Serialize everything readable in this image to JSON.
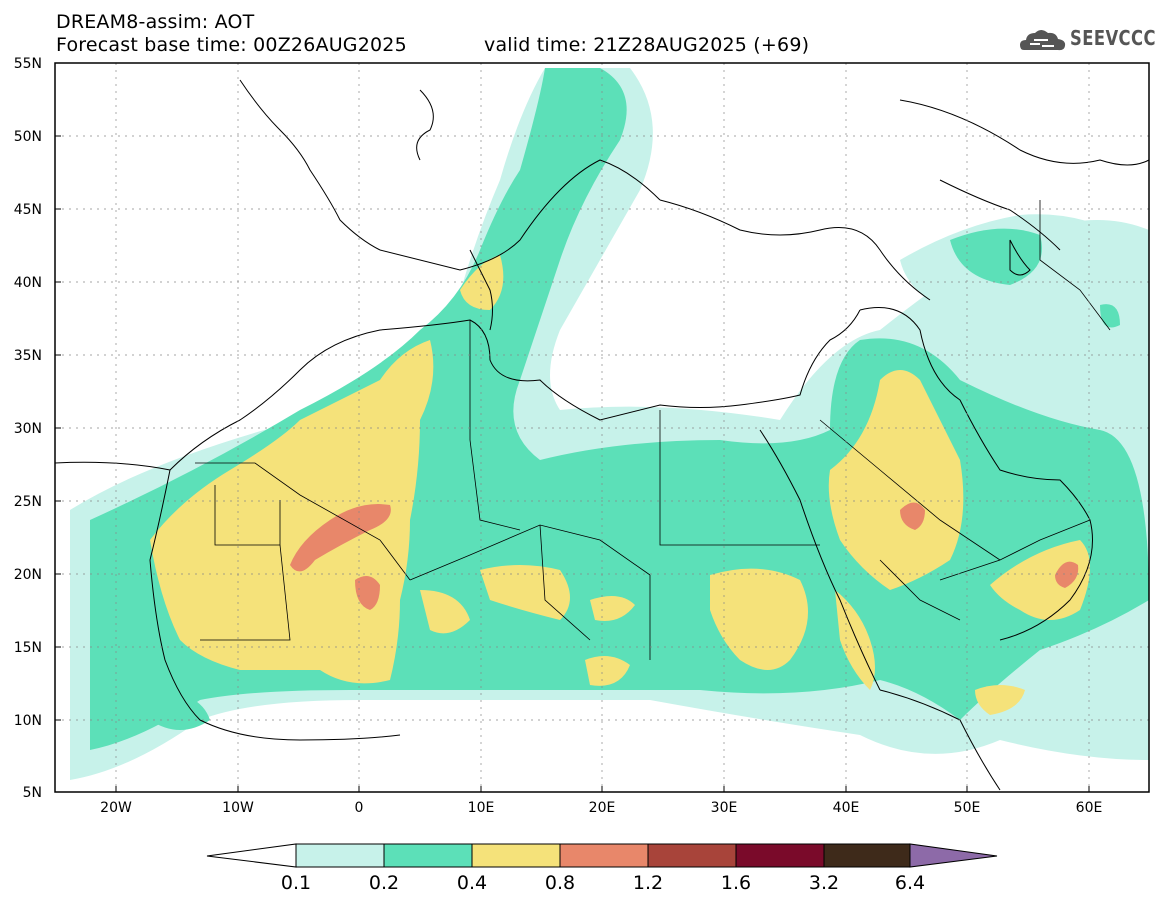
{
  "header": {
    "title_line1": "DREAM8-assim: AOT",
    "title_line2": "Forecast base time: 00Z26AUG2025",
    "valid_time": "valid time: 21Z28AUG2025 (+69)",
    "logo_text": "SEEVCCC"
  },
  "map": {
    "lat_labels": [
      "55N",
      "50N",
      "45N",
      "40N",
      "35N",
      "30N",
      "25N",
      "20N",
      "15N",
      "10N",
      "5N"
    ],
    "lon_labels": [
      "20W",
      "10W",
      "0",
      "10E",
      "20E",
      "30E",
      "40E",
      "50E",
      "60E"
    ],
    "lat_range": [
      5,
      55
    ],
    "lon_range": [
      -25,
      65
    ]
  },
  "colorbar": {
    "labels": [
      "0.1",
      "0.2",
      "0.4",
      "0.8",
      "1.2",
      "1.6",
      "3.2",
      "6.4"
    ],
    "colors": [
      "#c7f2ea",
      "#5ce0b8",
      "#f5e27a",
      "#e8876a",
      "#a8443a",
      "#7a0a2a",
      "#3e2a1a",
      "#8d6aa8"
    ]
  }
}
